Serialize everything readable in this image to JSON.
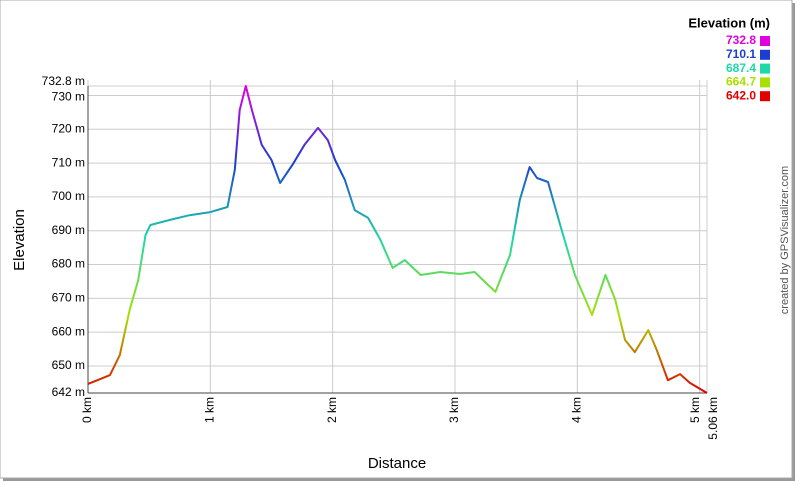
{
  "chart_data": {
    "type": "line",
    "x_label": "Distance",
    "y_label": "Elevation",
    "credit": "created by GPSVisualizer.com",
    "x": [
      0,
      0.1,
      0.18,
      0.26,
      0.34,
      0.41,
      0.47,
      0.51,
      0.67,
      0.83,
      1.0,
      1.14,
      1.2,
      1.24,
      1.29,
      1.34,
      1.42,
      1.5,
      1.57,
      1.67,
      1.77,
      1.88,
      1.96,
      2.02,
      2.1,
      2.18,
      2.29,
      2.39,
      2.49,
      2.59,
      2.72,
      2.88,
      3.04,
      3.16,
      3.33,
      3.45,
      3.53,
      3.61,
      3.67,
      3.76,
      3.86,
      3.98,
      4.12,
      4.23,
      4.31,
      4.39,
      4.47,
      4.58,
      4.65,
      4.74,
      4.84,
      4.92,
      5.06
    ],
    "values": [
      644.7,
      646.1,
      647.3,
      653.2,
      666.5,
      675.4,
      688.7,
      691.7,
      693.2,
      694.6,
      695.5,
      697,
      708,
      725.7,
      732.8,
      725.7,
      715.4,
      710.9,
      704.1,
      709.4,
      715.4,
      720.4,
      716.8,
      710.9,
      705,
      696.1,
      693.8,
      687.3,
      679,
      681.3,
      676.9,
      677.8,
      677.2,
      677.8,
      671.9,
      682.8,
      699.1,
      708.8,
      705.6,
      704.4,
      691.7,
      676.9,
      665.1,
      676.9,
      669.5,
      657.7,
      654.1,
      660.6,
      654.7,
      645.8,
      647.6,
      645,
      642
    ],
    "xlim": [
      0,
      5.06
    ],
    "xticks": [
      {
        "value": 0,
        "label": "0 km"
      },
      {
        "value": 1,
        "label": "1 km"
      },
      {
        "value": 2,
        "label": "2 km"
      },
      {
        "value": 3,
        "label": "3 km"
      },
      {
        "value": 4,
        "label": "4 km"
      },
      {
        "value": 5,
        "label": "5 km"
      },
      {
        "value": 5.06,
        "label": "5.06 km"
      }
    ],
    "ylim": [
      642,
      732.8
    ],
    "yticks": [
      {
        "value": 642,
        "label": "642 m"
      },
      {
        "value": 650,
        "label": "650 m"
      },
      {
        "value": 660,
        "label": "660 m"
      },
      {
        "value": 670,
        "label": "670 m"
      },
      {
        "value": 680,
        "label": "680 m"
      },
      {
        "value": 690,
        "label": "690 m"
      },
      {
        "value": 700,
        "label": "700 m"
      },
      {
        "value": 710,
        "label": "710 m"
      },
      {
        "value": 720,
        "label": "720 m"
      },
      {
        "value": 730,
        "label": "730 m"
      },
      {
        "value": 732.8,
        "label": "732.8 m"
      }
    ],
    "grid": true,
    "color_scale": {
      "title": "Elevation (m)",
      "values": [
        732.8,
        710.1,
        687.4,
        664.7,
        642
      ],
      "value_labels": [
        "732.8",
        "710.1",
        "687.4",
        "664.7",
        "642.0"
      ],
      "colors": [
        "#e000e0",
        "#1a3fd0",
        "#1ed8a8",
        "#a8e000",
        "#e00000"
      ]
    }
  }
}
